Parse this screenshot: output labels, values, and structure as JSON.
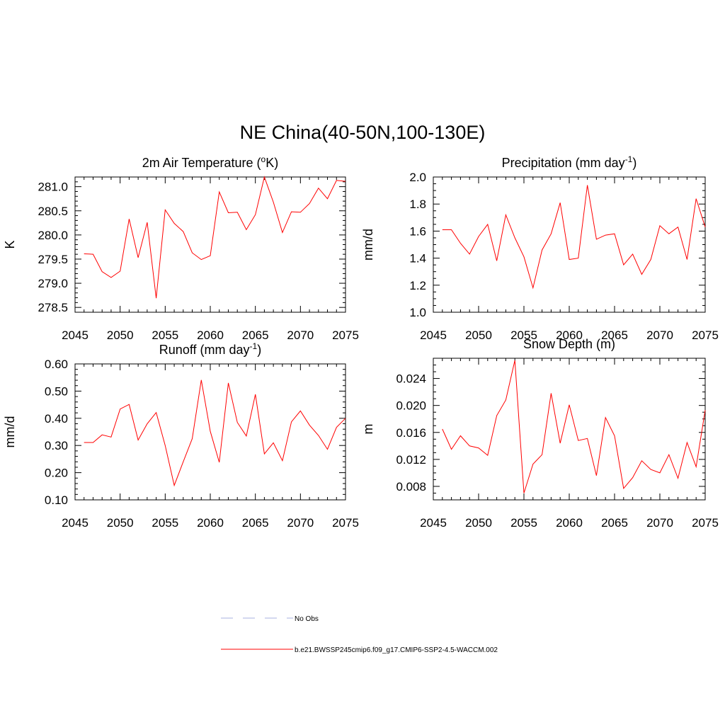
{
  "title": "NE China(40-50N,100-130E)",
  "colors": {
    "model": "#ff0000",
    "obs": "#aab0e0",
    "frame": "#000000"
  },
  "chart_data": [
    {
      "type": "line",
      "title_main": "2m Air Temperature (",
      "title_sup": "o",
      "title_tail": "K)",
      "ylabel": "K",
      "xlim": [
        2045,
        2075
      ],
      "xticks": [
        2045,
        2050,
        2055,
        2060,
        2065,
        2070,
        2075
      ],
      "xtick_labels": [
        "2045",
        "2050",
        "2055",
        "2060",
        "2065",
        "2070",
        "2075"
      ],
      "ylim": [
        278.4,
        281.2
      ],
      "yticks": [
        278.5,
        279.0,
        279.5,
        280.0,
        280.5,
        281.0
      ],
      "ytick_labels": [
        "278.5",
        "279.0",
        "279.5",
        "280.0",
        "280.5",
        "281.0"
      ],
      "yminor": [
        278.6,
        278.7,
        278.8,
        278.9,
        279.1,
        279.2,
        279.3,
        279.4,
        279.6,
        279.7,
        279.8,
        279.9,
        280.1,
        280.2,
        280.3,
        280.4,
        280.6,
        280.7,
        280.8,
        280.9,
        281.1
      ],
      "series": [
        {
          "x": [
            2046,
            2047,
            2048,
            2049,
            2050,
            2051,
            2052,
            2053,
            2054,
            2055,
            2056,
            2057,
            2058,
            2059,
            2060,
            2061,
            2062,
            2063,
            2064,
            2065,
            2066,
            2067,
            2068,
            2069,
            2070,
            2071,
            2072,
            2073,
            2074,
            2075
          ],
          "values": [
            279.61,
            279.6,
            279.24,
            279.12,
            279.25,
            280.33,
            279.53,
            280.26,
            278.69,
            280.52,
            280.24,
            280.07,
            279.63,
            279.49,
            279.57,
            280.89,
            280.46,
            280.47,
            280.11,
            280.42,
            281.2,
            280.68,
            280.05,
            280.48,
            280.47,
            280.65,
            280.97,
            280.75,
            281.13,
            281.11
          ]
        }
      ]
    },
    {
      "type": "line",
      "title_main": "Precipitation (mm day",
      "title_sup": "-1",
      "title_tail": ")",
      "ylabel": "mm/d",
      "xlim": [
        2045,
        2075
      ],
      "xticks": [
        2045,
        2050,
        2055,
        2060,
        2065,
        2070,
        2075
      ],
      "xtick_labels": [
        "2045",
        "2050",
        "2055",
        "2060",
        "2065",
        "2070",
        "2075"
      ],
      "ylim": [
        1.0,
        2.0
      ],
      "yticks": [
        1.0,
        1.2,
        1.4,
        1.6,
        1.8,
        2.0
      ],
      "ytick_labels": [
        "1.0",
        "1.2",
        "1.4",
        "1.6",
        "1.8",
        "2.0"
      ],
      "yminor": [
        1.05,
        1.1,
        1.15,
        1.25,
        1.3,
        1.35,
        1.45,
        1.5,
        1.55,
        1.65,
        1.7,
        1.75,
        1.85,
        1.9,
        1.95
      ],
      "series": [
        {
          "x": [
            2046,
            2047,
            2048,
            2049,
            2050,
            2051,
            2052,
            2053,
            2054,
            2055,
            2056,
            2057,
            2058,
            2059,
            2060,
            2061,
            2062,
            2063,
            2064,
            2065,
            2066,
            2067,
            2068,
            2069,
            2070,
            2071,
            2072,
            2073,
            2074,
            2075
          ],
          "values": [
            1.61,
            1.61,
            1.51,
            1.43,
            1.56,
            1.65,
            1.38,
            1.72,
            1.55,
            1.41,
            1.18,
            1.46,
            1.58,
            1.81,
            1.39,
            1.4,
            1.94,
            1.54,
            1.57,
            1.58,
            1.35,
            1.43,
            1.28,
            1.39,
            1.64,
            1.58,
            1.63,
            1.39,
            1.84,
            1.63
          ]
        }
      ]
    },
    {
      "type": "line",
      "title_main": "Runoff (mm day",
      "title_sup": "-1",
      "title_tail": ")",
      "ylabel": "mm/d",
      "xlim": [
        2045,
        2075
      ],
      "xticks": [
        2045,
        2050,
        2055,
        2060,
        2065,
        2070,
        2075
      ],
      "xtick_labels": [
        "2045",
        "2050",
        "2055",
        "2060",
        "2065",
        "2070",
        "2075"
      ],
      "ylim": [
        0.1,
        0.6
      ],
      "yticks": [
        0.1,
        0.2,
        0.3,
        0.4,
        0.5,
        0.6
      ],
      "ytick_labels": [
        "0.10",
        "0.20",
        "0.30",
        "0.40",
        "0.50",
        "0.60"
      ],
      "yminor": [
        0.12,
        0.14,
        0.16,
        0.18,
        0.22,
        0.24,
        0.26,
        0.28,
        0.32,
        0.34,
        0.36,
        0.38,
        0.42,
        0.44,
        0.46,
        0.48,
        0.52,
        0.54,
        0.56,
        0.58
      ],
      "series": [
        {
          "x": [
            2046,
            2047,
            2048,
            2049,
            2050,
            2051,
            2052,
            2053,
            2054,
            2055,
            2056,
            2057,
            2058,
            2059,
            2060,
            2061,
            2062,
            2063,
            2064,
            2065,
            2066,
            2067,
            2068,
            2069,
            2070,
            2071,
            2072,
            2073,
            2074,
            2075
          ],
          "values": [
            0.311,
            0.311,
            0.339,
            0.331,
            0.434,
            0.451,
            0.32,
            0.38,
            0.421,
            0.3,
            0.153,
            0.24,
            0.325,
            0.541,
            0.352,
            0.238,
            0.53,
            0.385,
            0.335,
            0.488,
            0.269,
            0.31,
            0.244,
            0.387,
            0.427,
            0.375,
            0.337,
            0.286,
            0.367,
            0.4
          ]
        }
      ]
    },
    {
      "type": "line",
      "title_main": "Snow Depth (m)",
      "title_sup": "",
      "title_tail": "",
      "ylabel": "m",
      "xlim": [
        2045,
        2075
      ],
      "xticks": [
        2045,
        2050,
        2055,
        2060,
        2065,
        2070,
        2075
      ],
      "xtick_labels": [
        "2045",
        "2050",
        "2055",
        "2060",
        "2065",
        "2070",
        "2075"
      ],
      "ylim": [
        0.006,
        0.027
      ],
      "yticks": [
        0.008,
        0.012,
        0.016,
        0.02,
        0.024
      ],
      "ytick_labels": [
        "0.008",
        "0.012",
        "0.016",
        "0.020",
        "0.024"
      ],
      "yminor": [
        0.006,
        0.007,
        0.009,
        0.01,
        0.011,
        0.013,
        0.014,
        0.015,
        0.017,
        0.018,
        0.019,
        0.021,
        0.022,
        0.023,
        0.025,
        0.026
      ],
      "series": [
        {
          "x": [
            2046,
            2047,
            2048,
            2049,
            2050,
            2051,
            2052,
            2053,
            2054,
            2055,
            2056,
            2057,
            2058,
            2059,
            2060,
            2061,
            2062,
            2063,
            2064,
            2065,
            2066,
            2067,
            2068,
            2069,
            2070,
            2071,
            2072,
            2073,
            2074,
            2075
          ],
          "values": [
            0.0165,
            0.0135,
            0.0155,
            0.014,
            0.0137,
            0.0126,
            0.0185,
            0.0208,
            0.0267,
            0.007,
            0.0113,
            0.0127,
            0.0218,
            0.0144,
            0.0201,
            0.0148,
            0.0151,
            0.0096,
            0.0182,
            0.0155,
            0.0077,
            0.0093,
            0.0118,
            0.0105,
            0.01,
            0.0127,
            0.0092,
            0.0145,
            0.0109,
            0.0193
          ]
        }
      ]
    }
  ],
  "legend": [
    {
      "label": "No Obs",
      "style": "dashed",
      "color": "#aab0e0"
    },
    {
      "label": "b.e21.BWSSP245cmip6.f09_g17.CMIP6-SSP2-4.5-WACCM.002",
      "style": "solid",
      "color": "#ff0000"
    }
  ]
}
